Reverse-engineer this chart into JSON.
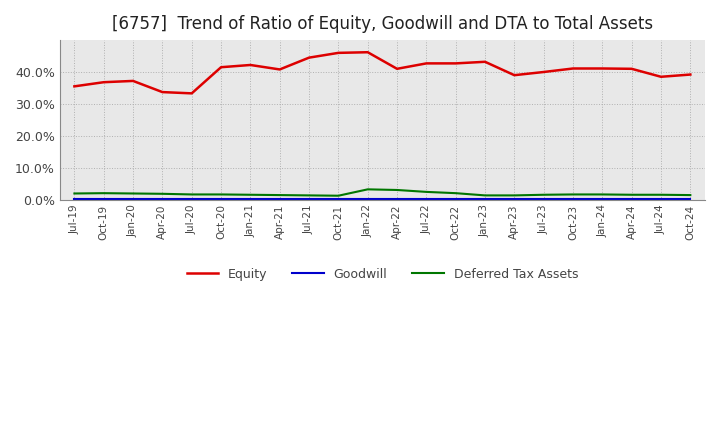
{
  "title": "[6757]  Trend of Ratio of Equity, Goodwill and DTA to Total Assets",
  "x_labels": [
    "Jul-19",
    "Oct-19",
    "Jan-20",
    "Apr-20",
    "Jul-20",
    "Oct-20",
    "Jan-21",
    "Apr-21",
    "Jul-21",
    "Oct-21",
    "Jan-22",
    "Apr-22",
    "Jul-22",
    "Oct-22",
    "Jan-23",
    "Apr-23",
    "Jul-23",
    "Oct-23",
    "Jan-24",
    "Apr-24",
    "Jul-24",
    "Oct-24"
  ],
  "equity": [
    0.355,
    0.368,
    0.372,
    0.337,
    0.333,
    0.415,
    0.422,
    0.408,
    0.445,
    0.46,
    0.462,
    0.41,
    0.427,
    0.427,
    0.432,
    0.39,
    0.4,
    0.411,
    0.411,
    0.41,
    0.385,
    0.392
  ],
  "goodwill": [
    0.001,
    0.001,
    0.001,
    0.001,
    0.001,
    0.001,
    0.001,
    0.001,
    0.001,
    0.001,
    0.001,
    0.001,
    0.001,
    0.001,
    0.001,
    0.001,
    0.001,
    0.001,
    0.001,
    0.001,
    0.001,
    0.001
  ],
  "dta": [
    0.019,
    0.02,
    0.019,
    0.018,
    0.016,
    0.016,
    0.015,
    0.014,
    0.013,
    0.012,
    0.032,
    0.03,
    0.024,
    0.02,
    0.013,
    0.013,
    0.015,
    0.016,
    0.016,
    0.015,
    0.015,
    0.014
  ],
  "equity_color": "#dd0000",
  "goodwill_color": "#0000cc",
  "dta_color": "#007700",
  "ylim": [
    0.0,
    0.5
  ],
  "yticks": [
    0.0,
    0.1,
    0.2,
    0.3,
    0.4
  ],
  "background_color": "#ffffff",
  "plot_bg_color": "#e8e8e8",
  "grid_color": "#aaaaaa",
  "title_fontsize": 12
}
